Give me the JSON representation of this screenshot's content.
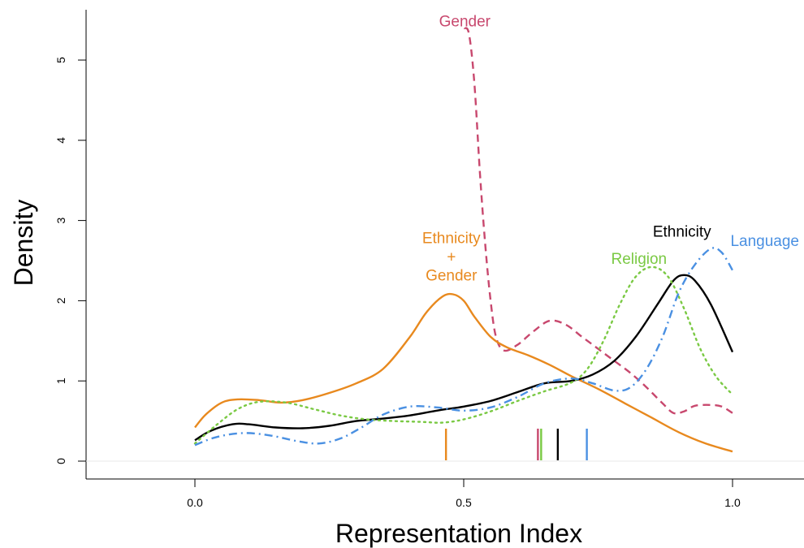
{
  "chart_data": {
    "type": "line",
    "title": "",
    "xlabel": "Representation Index",
    "ylabel": "Density",
    "xlim": [
      -0.2,
      1.13
    ],
    "ylim": [
      -0.2,
      5.65
    ],
    "x_ticks": [
      0.0,
      0.5,
      1.0
    ],
    "x_tick_labels": [
      "0.0",
      "0.5",
      "1.0"
    ],
    "y_ticks": [
      0,
      1,
      2,
      3,
      4,
      5
    ],
    "y_tick_labels": [
      "0",
      "1",
      "2",
      "3",
      "4",
      "5"
    ],
    "grid": false,
    "legend": "none (series labelled directly on plot)",
    "series": [
      {
        "name": "Gender",
        "color": "#c8486e",
        "dash": "dashed",
        "points": [
          [
            0.501,
            5.4
          ],
          [
            0.51,
            5.32
          ],
          [
            0.52,
            4.7
          ],
          [
            0.53,
            3.6
          ],
          [
            0.54,
            2.7
          ],
          [
            0.55,
            2.0
          ],
          [
            0.56,
            1.55
          ],
          [
            0.575,
            1.38
          ],
          [
            0.6,
            1.45
          ],
          [
            0.63,
            1.62
          ],
          [
            0.66,
            1.75
          ],
          [
            0.69,
            1.7
          ],
          [
            0.72,
            1.55
          ],
          [
            0.75,
            1.4
          ],
          [
            0.78,
            1.25
          ],
          [
            0.81,
            1.1
          ],
          [
            0.84,
            0.92
          ],
          [
            0.87,
            0.72
          ],
          [
            0.89,
            0.6
          ],
          [
            0.91,
            0.62
          ],
          [
            0.93,
            0.69
          ],
          [
            0.96,
            0.7
          ],
          [
            0.98,
            0.68
          ],
          [
            1.0,
            0.6
          ]
        ]
      },
      {
        "name": "Ethnicity\n+\nGender",
        "color": "#e8891e",
        "dash": "solid",
        "points": [
          [
            0.0,
            0.42
          ],
          [
            0.02,
            0.58
          ],
          [
            0.05,
            0.73
          ],
          [
            0.08,
            0.77
          ],
          [
            0.12,
            0.76
          ],
          [
            0.16,
            0.73
          ],
          [
            0.2,
            0.76
          ],
          [
            0.25,
            0.85
          ],
          [
            0.3,
            0.97
          ],
          [
            0.35,
            1.15
          ],
          [
            0.4,
            1.55
          ],
          [
            0.43,
            1.85
          ],
          [
            0.46,
            2.05
          ],
          [
            0.48,
            2.08
          ],
          [
            0.5,
            2.0
          ],
          [
            0.52,
            1.8
          ],
          [
            0.55,
            1.55
          ],
          [
            0.58,
            1.42
          ],
          [
            0.62,
            1.32
          ],
          [
            0.66,
            1.2
          ],
          [
            0.7,
            1.06
          ],
          [
            0.75,
            0.9
          ],
          [
            0.8,
            0.72
          ],
          [
            0.85,
            0.54
          ],
          [
            0.9,
            0.36
          ],
          [
            0.95,
            0.22
          ],
          [
            1.0,
            0.12
          ]
        ]
      },
      {
        "name": "Ethnicity",
        "color": "#000000",
        "dash": "solid",
        "points": [
          [
            0.0,
            0.26
          ],
          [
            0.03,
            0.38
          ],
          [
            0.07,
            0.46
          ],
          [
            0.1,
            0.46
          ],
          [
            0.15,
            0.42
          ],
          [
            0.2,
            0.41
          ],
          [
            0.25,
            0.44
          ],
          [
            0.3,
            0.5
          ],
          [
            0.35,
            0.53
          ],
          [
            0.4,
            0.57
          ],
          [
            0.45,
            0.63
          ],
          [
            0.5,
            0.68
          ],
          [
            0.55,
            0.75
          ],
          [
            0.6,
            0.86
          ],
          [
            0.65,
            0.97
          ],
          [
            0.7,
            1.0
          ],
          [
            0.74,
            1.08
          ],
          [
            0.78,
            1.25
          ],
          [
            0.82,
            1.55
          ],
          [
            0.86,
            1.95
          ],
          [
            0.89,
            2.25
          ],
          [
            0.91,
            2.32
          ],
          [
            0.93,
            2.25
          ],
          [
            0.96,
            1.95
          ],
          [
            1.0,
            1.36
          ]
        ]
      },
      {
        "name": "Religion",
        "color": "#7ac943",
        "dash": "dotted",
        "points": [
          [
            0.0,
            0.22
          ],
          [
            0.04,
            0.45
          ],
          [
            0.08,
            0.65
          ],
          [
            0.12,
            0.74
          ],
          [
            0.17,
            0.73
          ],
          [
            0.22,
            0.65
          ],
          [
            0.27,
            0.57
          ],
          [
            0.32,
            0.52
          ],
          [
            0.37,
            0.5
          ],
          [
            0.42,
            0.49
          ],
          [
            0.46,
            0.48
          ],
          [
            0.5,
            0.52
          ],
          [
            0.55,
            0.62
          ],
          [
            0.6,
            0.75
          ],
          [
            0.65,
            0.87
          ],
          [
            0.7,
            0.98
          ],
          [
            0.73,
            1.15
          ],
          [
            0.76,
            1.5
          ],
          [
            0.79,
            1.95
          ],
          [
            0.82,
            2.3
          ],
          [
            0.85,
            2.42
          ],
          [
            0.88,
            2.3
          ],
          [
            0.91,
            1.9
          ],
          [
            0.94,
            1.4
          ],
          [
            0.97,
            1.05
          ],
          [
            1.0,
            0.83
          ]
        ]
      },
      {
        "name": "Language",
        "color": "#4a90e2",
        "dash": "dashdot",
        "points": [
          [
            0.0,
            0.2
          ],
          [
            0.04,
            0.3
          ],
          [
            0.09,
            0.35
          ],
          [
            0.14,
            0.32
          ],
          [
            0.19,
            0.25
          ],
          [
            0.23,
            0.22
          ],
          [
            0.27,
            0.28
          ],
          [
            0.31,
            0.42
          ],
          [
            0.35,
            0.58
          ],
          [
            0.4,
            0.68
          ],
          [
            0.45,
            0.67
          ],
          [
            0.5,
            0.63
          ],
          [
            0.55,
            0.67
          ],
          [
            0.6,
            0.8
          ],
          [
            0.65,
            0.97
          ],
          [
            0.7,
            1.03
          ],
          [
            0.74,
            0.97
          ],
          [
            0.78,
            0.88
          ],
          [
            0.81,
            0.92
          ],
          [
            0.84,
            1.15
          ],
          [
            0.87,
            1.55
          ],
          [
            0.9,
            2.1
          ],
          [
            0.93,
            2.45
          ],
          [
            0.96,
            2.65
          ],
          [
            0.98,
            2.6
          ],
          [
            1.0,
            2.38
          ]
        ]
      }
    ],
    "rug_marks": [
      {
        "series": "Ethnicity\n+\nGender",
        "x": 0.467,
        "color": "#e8891e"
      },
      {
        "series": "Gender",
        "x": 0.638,
        "color": "#c8486e"
      },
      {
        "series": "Religion",
        "x": 0.644,
        "color": "#7ac943"
      },
      {
        "series": "Ethnicity",
        "x": 0.675,
        "color": "#000000"
      },
      {
        "series": "Language",
        "x": 0.729,
        "color": "#4a90e2"
      }
    ],
    "labels": [
      {
        "series": "Gender",
        "text": "Gender",
        "x": 0.502,
        "y": 5.42,
        "color": "#c8486e"
      },
      {
        "series": "Ethnicity\n+\nGender",
        "lines": [
          "Ethnicity",
          "+",
          "Gender"
        ],
        "x": 0.477,
        "y": 2.72,
        "color": "#e8891e"
      },
      {
        "series": "Ethnicity",
        "text": "Ethnicity",
        "x": 0.906,
        "y": 2.8,
        "color": "#000000"
      },
      {
        "series": "Religion",
        "text": "Religion",
        "x": 0.826,
        "y": 2.46,
        "color": "#7ac943"
      },
      {
        "series": "Language",
        "text": "Language",
        "x": 1.06,
        "y": 2.68,
        "color": "#4a90e2"
      }
    ]
  }
}
